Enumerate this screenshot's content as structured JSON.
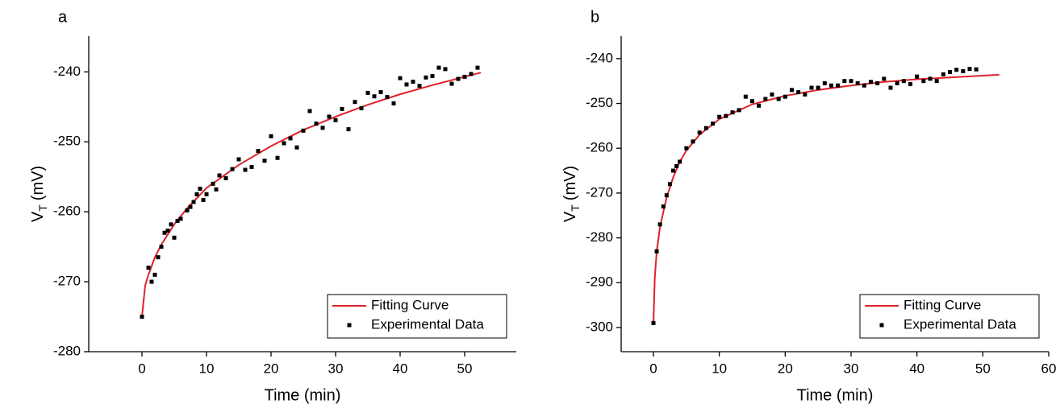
{
  "chart_data": [
    {
      "type": "scatter",
      "panel_label": "a",
      "xlabel": "Time (min)",
      "ylabel": {
        "symbol": "V",
        "subscript": "T",
        "unit": "(mV)"
      },
      "xlim": [
        -8.25,
        58
      ],
      "ylim": [
        -280,
        -234.9
      ],
      "xticks": [
        0,
        10,
        20,
        30,
        40,
        50
      ],
      "yticks": [
        -280,
        -270,
        -260,
        -250,
        -240
      ],
      "legend": "lower right",
      "series": [
        {
          "name": "Fitting Curve",
          "kind": "line",
          "color": "#e0202a",
          "x": [
            0,
            0.5,
            1,
            2,
            3,
            5,
            7,
            10,
            15,
            20,
            25,
            30,
            35,
            40,
            45,
            52.5
          ],
          "values": [
            -275,
            -270.5,
            -269,
            -266.5,
            -264.7,
            -261.8,
            -259.5,
            -256.6,
            -253.3,
            -250.6,
            -248.3,
            -246.4,
            -244.7,
            -243.2,
            -241.9,
            -240.1
          ]
        },
        {
          "name": "Experimental Data",
          "kind": "markers",
          "color": "#000000",
          "x": [
            0,
            1,
            1.5,
            2,
            2.5,
            3,
            3.5,
            4,
            4.5,
            5,
            5.5,
            6,
            7,
            7.5,
            8,
            8.5,
            9,
            9.5,
            10,
            11,
            11.5,
            12,
            13,
            14,
            15,
            16,
            17,
            18,
            19,
            20,
            21,
            22,
            23,
            24,
            25,
            26,
            27,
            28,
            29,
            30,
            31,
            32,
            33,
            34,
            35,
            36,
            37,
            38,
            39,
            40,
            41,
            42,
            43,
            44,
            45,
            46,
            47,
            48,
            49,
            50,
            51,
            52
          ],
          "values": [
            -275,
            -268,
            -270,
            -269,
            -266.5,
            -265,
            -263,
            -262.7,
            -261.8,
            -263.7,
            -261.3,
            -261,
            -259.8,
            -259.3,
            -258.6,
            -257.5,
            -256.7,
            -258.3,
            -257.5,
            -256,
            -256.8,
            -254.8,
            -255.2,
            -253.9,
            -252.5,
            -254,
            -253.6,
            -251.3,
            -252.7,
            -249.2,
            -252.3,
            -250.2,
            -249.5,
            -250.8,
            -248.4,
            -245.6,
            -247.4,
            -248,
            -246.4,
            -246.9,
            -245.3,
            -248.2,
            -244.3,
            -245.2,
            -243,
            -243.5,
            -242.9,
            -243.6,
            -244.5,
            -240.9,
            -241.8,
            -241.4,
            -242,
            -240.8,
            -240.6,
            -239.4,
            -239.6,
            -241.7,
            -241,
            -240.7,
            -240.3,
            -239.4
          ]
        }
      ]
    },
    {
      "type": "scatter",
      "panel_label": "b",
      "xlabel": "Time (min)",
      "ylabel": {
        "symbol": "V",
        "subscript": "T",
        "unit": "(mV)"
      },
      "xlim": [
        -4.9,
        60
      ],
      "ylim": [
        -305.4,
        -235
      ],
      "xticks": [
        0,
        10,
        20,
        30,
        40,
        50,
        60
      ],
      "yticks": [
        -300,
        -290,
        -280,
        -270,
        -260,
        -250,
        -240
      ],
      "legend": "lower right",
      "series": [
        {
          "name": "Fitting Curve",
          "kind": "line",
          "color": "#e0202a",
          "x": [
            0,
            0.2,
            0.5,
            1,
            2,
            3,
            4,
            5,
            7,
            10,
            15,
            20,
            25,
            30,
            35,
            40,
            45,
            52.5
          ],
          "values": [
            -299,
            -289,
            -283,
            -277.5,
            -271,
            -266.5,
            -263,
            -260.5,
            -257,
            -253.5,
            -250.2,
            -248.3,
            -247,
            -246,
            -245.2,
            -244.6,
            -244.2,
            -243.6
          ]
        },
        {
          "name": "Experimental Data",
          "kind": "markers",
          "color": "#000000",
          "x": [
            0,
            0.5,
            1,
            1.5,
            2,
            2.5,
            3,
            3.5,
            4,
            5,
            6,
            7,
            8,
            9,
            10,
            11,
            12,
            13,
            14,
            15,
            16,
            17,
            18,
            19,
            20,
            21,
            22,
            23,
            24,
            25,
            26,
            27,
            28,
            29,
            30,
            31,
            32,
            33,
            34,
            35,
            36,
            37,
            38,
            39,
            40,
            41,
            42,
            43,
            44,
            45,
            46,
            47,
            48,
            49
          ],
          "values": [
            -299,
            -283,
            -277,
            -273,
            -270.5,
            -268,
            -265,
            -264,
            -263,
            -260,
            -258.5,
            -256.5,
            -255.5,
            -254.5,
            -253,
            -252.8,
            -252,
            -251.5,
            -248.5,
            -249.5,
            -250.5,
            -249,
            -248,
            -249,
            -248.5,
            -247,
            -247.5,
            -248,
            -246.5,
            -246.5,
            -245.5,
            -246,
            -246,
            -245,
            -245,
            -245.5,
            -246,
            -245.2,
            -245.5,
            -244.5,
            -246.5,
            -245.5,
            -245,
            -245.7,
            -244,
            -245,
            -244.5,
            -245,
            -243.5,
            -243,
            -242.5,
            -242.8,
            -242.3,
            -242.4
          ]
        }
      ]
    }
  ]
}
